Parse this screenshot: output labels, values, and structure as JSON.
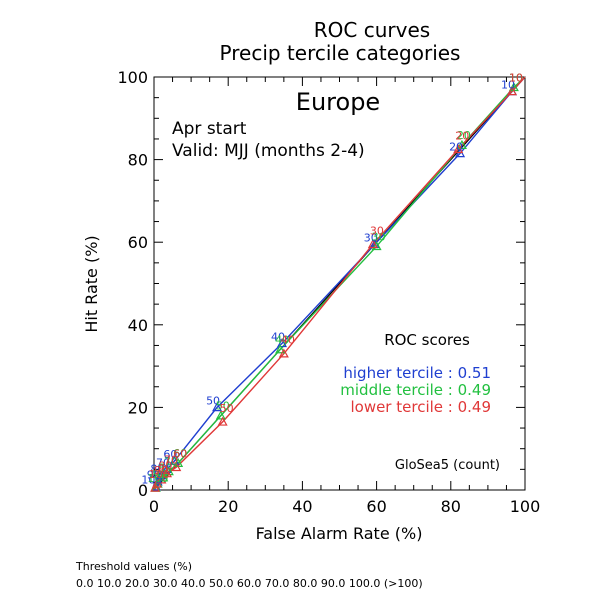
{
  "chart_data": {
    "type": "line",
    "title": "ROC curves",
    "subtitle": "Precip tercile categories",
    "region": "Europe",
    "info_lines": [
      "Apr start",
      "Valid: MJJ (months 2-4)"
    ],
    "xlabel": "False Alarm Rate (%)",
    "ylabel": "Hit Rate (%)",
    "xlim": [
      0,
      100
    ],
    "ylim": [
      0,
      100
    ],
    "x_ticks": [
      "0",
      "20",
      "40",
      "60",
      "80",
      "100"
    ],
    "y_ticks": [
      "0",
      "20",
      "40",
      "60",
      "80",
      "100"
    ],
    "x_tick_values": [
      0,
      20,
      40,
      60,
      80,
      100
    ],
    "y_tick_values": [
      0,
      20,
      40,
      60,
      80,
      100
    ],
    "diagonal_color": "#000000",
    "series": [
      {
        "name": "higher tercile",
        "color": "#1f3fd0",
        "points": [
          {
            "x": 0.0,
            "y": 0.0,
            "label": ""
          },
          {
            "x": 0.5,
            "y": 0.8,
            "label": "100"
          },
          {
            "x": 1.0,
            "y": 2.0,
            "label": "90"
          },
          {
            "x": 2.0,
            "y": 3.5,
            "label": "80"
          },
          {
            "x": 3.5,
            "y": 5.0,
            "label": "70"
          },
          {
            "x": 5.5,
            "y": 7.0,
            "label": "60"
          },
          {
            "x": 17.0,
            "y": 20.0,
            "label": "50"
          },
          {
            "x": 34.5,
            "y": 35.5,
            "label": "40"
          },
          {
            "x": 59.5,
            "y": 59.5,
            "label": "30"
          },
          {
            "x": 82.5,
            "y": 81.5,
            "label": "20"
          },
          {
            "x": 96.5,
            "y": 96.5,
            "label": "10"
          },
          {
            "x": 100.0,
            "y": 100.0,
            "label": ""
          }
        ]
      },
      {
        "name": "middle tercile",
        "color": "#22c040",
        "points": [
          {
            "x": 0.0,
            "y": 0.0,
            "label": ""
          },
          {
            "x": 0.5,
            "y": 0.5,
            "label": "100"
          },
          {
            "x": 1.0,
            "y": 1.5,
            "label": "90"
          },
          {
            "x": 2.5,
            "y": 3.0,
            "label": "80"
          },
          {
            "x": 4.0,
            "y": 4.5,
            "label": "70"
          },
          {
            "x": 6.5,
            "y": 6.5,
            "label": "60"
          },
          {
            "x": 18.0,
            "y": 18.0,
            "label": "50"
          },
          {
            "x": 34.0,
            "y": 34.0,
            "label": "40"
          },
          {
            "x": 60.0,
            "y": 59.0,
            "label": "30"
          },
          {
            "x": 83.0,
            "y": 83.5,
            "label": "20"
          },
          {
            "x": 97.0,
            "y": 97.5,
            "label": "10"
          },
          {
            "x": 100.0,
            "y": 100.0,
            "label": ""
          }
        ]
      },
      {
        "name": "lower tercile",
        "color": "#e03838",
        "points": [
          {
            "x": 0.0,
            "y": 0.0,
            "label": ""
          },
          {
            "x": 0.3,
            "y": 0.5,
            "label": "100"
          },
          {
            "x": 0.8,
            "y": 1.5,
            "label": "90"
          },
          {
            "x": 2.0,
            "y": 2.5,
            "label": "80"
          },
          {
            "x": 3.5,
            "y": 4.0,
            "label": "70"
          },
          {
            "x": 6.0,
            "y": 5.5,
            "label": "60"
          },
          {
            "x": 18.5,
            "y": 16.5,
            "label": "50"
          },
          {
            "x": 35.0,
            "y": 33.0,
            "label": "40"
          },
          {
            "x": 59.0,
            "y": 59.5,
            "label": "30"
          },
          {
            "x": 82.0,
            "y": 82.5,
            "label": "20"
          },
          {
            "x": 96.5,
            "y": 96.5,
            "label": "10"
          },
          {
            "x": 100.0,
            "y": 100.0,
            "label": ""
          }
        ]
      }
    ],
    "scores_title": "ROC scores",
    "scores": [
      {
        "text": "higher tercile : 0.51",
        "color": "#1f3fd0"
      },
      {
        "text": "middle tercile : 0.49",
        "color": "#22c040"
      },
      {
        "text": "lower tercile : 0.49",
        "color": "#e03838"
      }
    ],
    "model_label": "GloSea5 (count)"
  },
  "footer": {
    "heading": "Threshold values (%)",
    "values": "0.0 10.0 20.0 30.0 40.0 50.0 60.0 70.0 80.0 90.0 100.0 (>100)"
  }
}
